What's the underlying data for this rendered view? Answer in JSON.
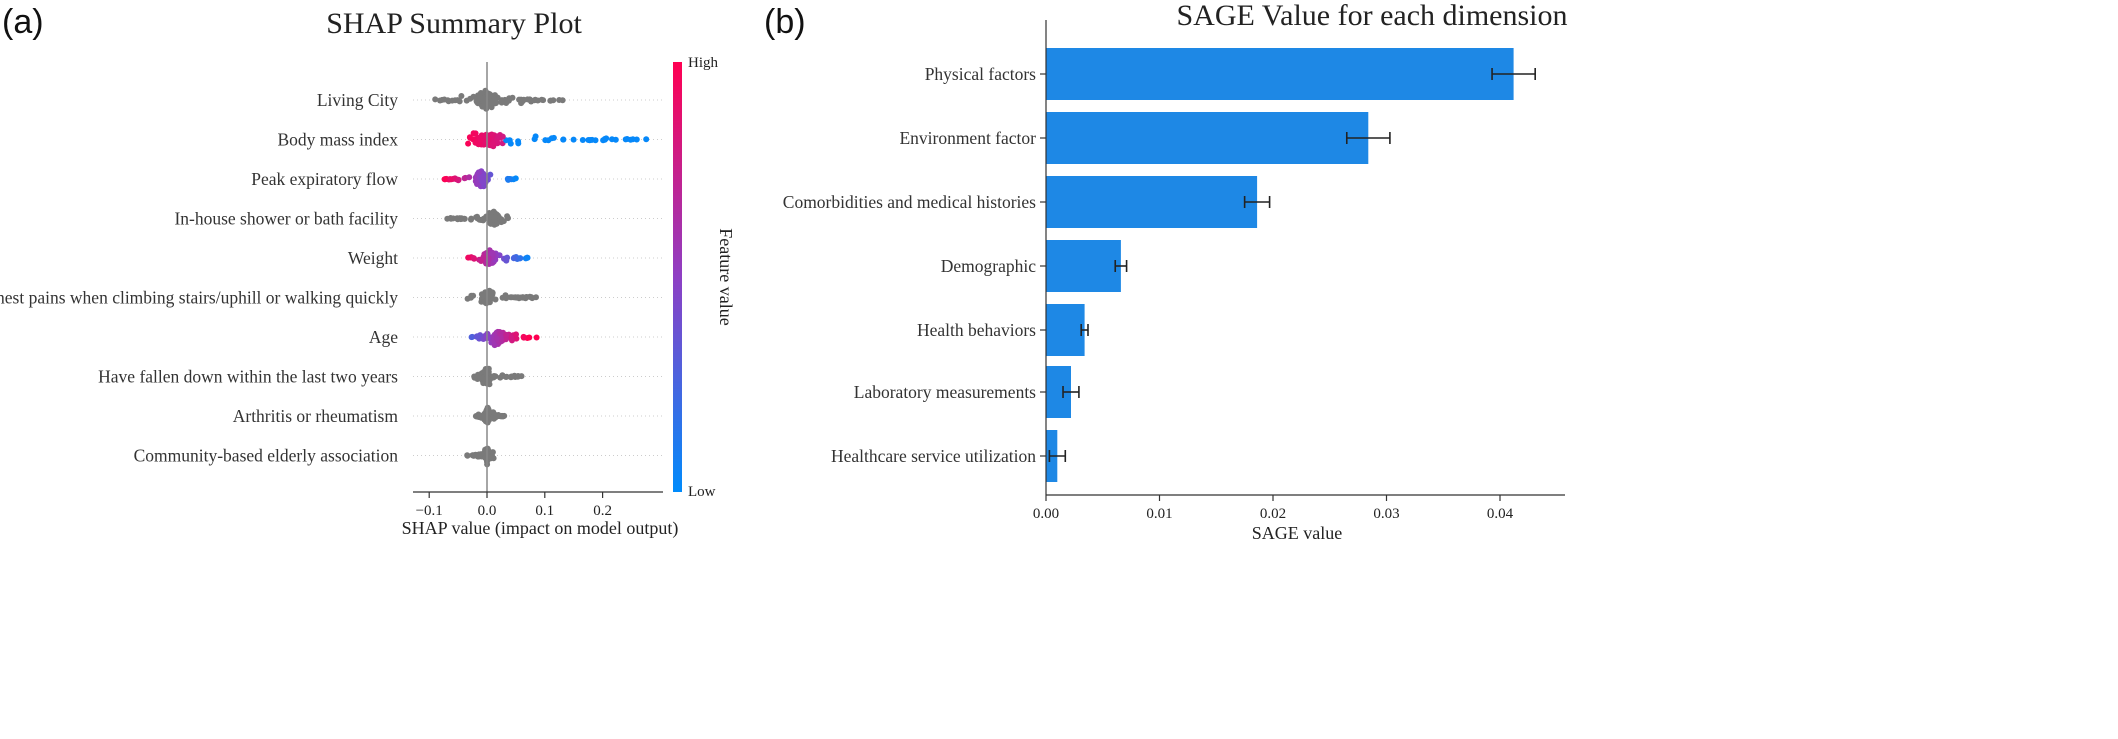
{
  "panel_a": {
    "label": "(a)"
  },
  "panel_b": {
    "label": "(b)"
  },
  "colors": {
    "bar": "#1e88e5",
    "neutral_dots": "#7a7a7a",
    "high": "#ff0052",
    "mid": "#8e3fc4",
    "low": "#008bfb",
    "error_bar": "#222222"
  },
  "chart_data": [
    {
      "type": "scatter",
      "subtype": "shap-beeswarm",
      "title": "SHAP Summary Plot",
      "xlabel": "SHAP value (impact on model output)",
      "xlim": [
        -0.12,
        0.29
      ],
      "xticks": [
        -0.1,
        0.0,
        0.1,
        0.2
      ],
      "xtick_labels": [
        "−0.1",
        "0.0",
        "0.1",
        "0.2"
      ],
      "colorbar": {
        "label": "Feature value",
        "high": "High",
        "low": "Low"
      },
      "features": [
        {
          "name": "Living City",
          "colored": false,
          "min": -0.09,
          "max": 0.135,
          "mean": 0.0
        },
        {
          "name": "Body mass index",
          "colored": true,
          "min": -0.04,
          "max": 0.28,
          "mean": 0.0
        },
        {
          "name": "Peak expiratory flow",
          "colored": true,
          "min": -0.075,
          "max": 0.05,
          "mean": -0.01
        },
        {
          "name": "In-house shower or bath facility",
          "colored": false,
          "min": -0.07,
          "max": 0.04,
          "mean": 0.01
        },
        {
          "name": "Weight",
          "colored": true,
          "min": -0.04,
          "max": 0.075,
          "mean": 0.005
        },
        {
          "name": "Chest pains when climbing stairs/uphill or walking quickly",
          "colored": false,
          "min": -0.035,
          "max": 0.085,
          "mean": 0.0
        },
        {
          "name": "Age",
          "colored": true,
          "min": -0.03,
          "max": 0.09,
          "mean": 0.02
        },
        {
          "name": "Have fallen down within the last two years",
          "colored": false,
          "min": -0.025,
          "max": 0.06,
          "mean": 0.0
        },
        {
          "name": "Arthritis or rheumatism",
          "colored": false,
          "min": -0.02,
          "max": 0.03,
          "mean": 0.0
        },
        {
          "name": "Community-based elderly association",
          "colored": false,
          "min": -0.035,
          "max": 0.015,
          "mean": 0.0
        }
      ]
    },
    {
      "type": "bar",
      "orientation": "horizontal",
      "title": "SAGE Value for each dimension",
      "xlabel": "SAGE value",
      "xlim": [
        0,
        0.045
      ],
      "xticks": [
        0.0,
        0.01,
        0.02,
        0.03,
        0.04
      ],
      "xtick_labels": [
        "0.00",
        "0.01",
        "0.02",
        "0.03",
        "0.04"
      ],
      "categories": [
        "Physical factors",
        "Environment factor",
        "Comorbidities and medical histories",
        "Demographic",
        "Health behaviors",
        "Laboratory measurements",
        "Healthcare service utilization"
      ],
      "values": [
        0.0412,
        0.0284,
        0.0186,
        0.0066,
        0.0034,
        0.0022,
        0.001
      ],
      "errors": [
        0.0019,
        0.0019,
        0.0011,
        0.0005,
        0.0003,
        0.0007,
        0.0007
      ]
    }
  ]
}
